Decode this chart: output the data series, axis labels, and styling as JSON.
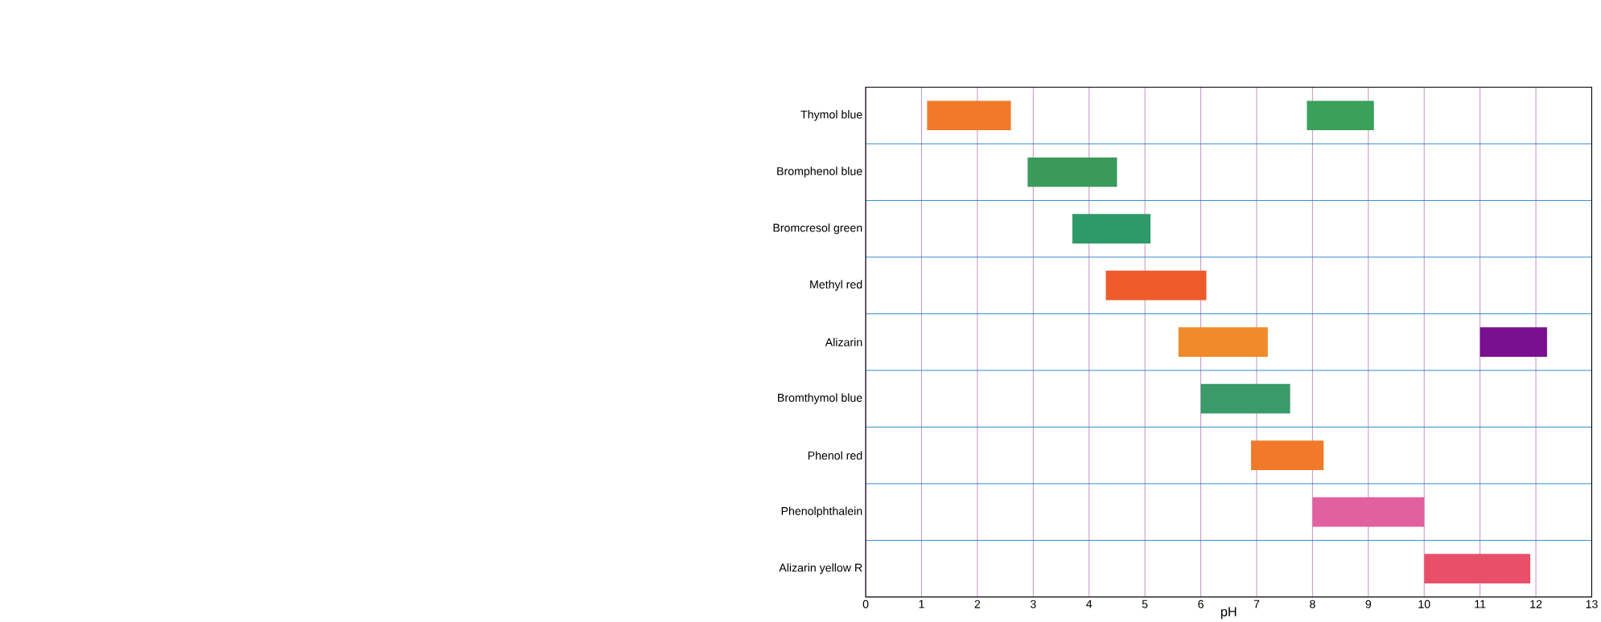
{
  "chart_data": {
    "type": "bar",
    "orientation": "horizontal",
    "xlabel": "pH",
    "categories": [
      "Thymol blue",
      "Bromphenol blue",
      "Bromcresol green",
      "Methyl red",
      "Alizarin",
      "Bromthymol blue",
      "Phenol red",
      "Phenolphthalein",
      "Alizarin yellow R"
    ],
    "series": [
      {
        "colors": [
          "#f07a2a",
          "#3a9a5a",
          "#2e9a6a",
          "#ee5a2a",
          "#f08a2a",
          "#3a9a6a",
          "#f07a2a",
          "#e060a0",
          "#e8506a"
        ],
        "base": [
          1.1,
          2.9,
          3.7,
          4.3,
          5.6,
          6.0,
          6.9,
          8.0,
          10.0
        ],
        "values": [
          1.5,
          1.6,
          1.4,
          1.8,
          1.6,
          1.6,
          1.3,
          2.0,
          1.9
        ]
      },
      {
        "colors": [
          "#3aa05a",
          null,
          null,
          null,
          "#7a1090",
          null,
          null,
          null,
          null
        ],
        "base": [
          7.9,
          null,
          null,
          null,
          11.0,
          null,
          null,
          null,
          null
        ],
        "values": [
          1.2,
          null,
          null,
          null,
          1.2,
          null,
          null,
          null,
          null
        ]
      }
    ],
    "xlim": [
      0,
      13
    ],
    "xticks": [
      0,
      1,
      2,
      3,
      4,
      5,
      6,
      7,
      8,
      9,
      10,
      11,
      12,
      13
    ],
    "grid": true
  }
}
